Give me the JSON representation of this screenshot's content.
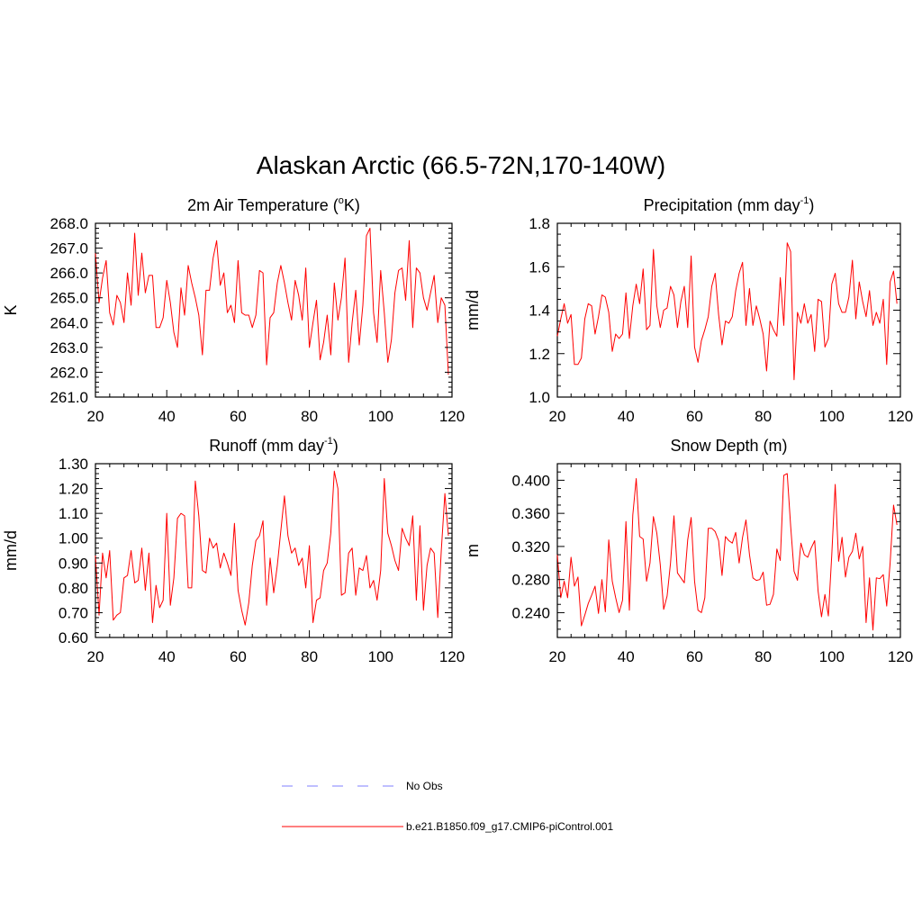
{
  "figure_title": "Alaskan Arctic (66.5-72N,170-140W)",
  "legend": {
    "obs_label": "No Obs",
    "obs_color": "#9999ff",
    "model_label": "b.e21.B1850.f09_g17.CMIP6-piControl.001",
    "model_color": "#ff0000"
  },
  "chart_data": [
    {
      "type": "line",
      "title": "2m Air Temperature (°K)",
      "ylabel": "K",
      "xlim": [
        20,
        120
      ],
      "ylim": [
        261.0,
        268.0
      ],
      "x_ticks": [
        "20",
        "40",
        "60",
        "80",
        "100",
        "120"
      ],
      "y_ticks": [
        "261.0",
        "262.0",
        "263.0",
        "264.0",
        "265.0",
        "266.0",
        "267.0",
        "268.0"
      ],
      "series": [
        {
          "x_start": 20,
          "x_step": 1,
          "values": [
            266.8,
            264.8,
            265.8,
            266.5,
            264.4,
            263.9,
            265.1,
            264.8,
            264.0,
            266.0,
            264.7,
            267.6,
            265.1,
            266.8,
            265.2,
            265.9,
            265.9,
            263.8,
            263.8,
            264.2,
            265.7,
            264.8,
            263.6,
            263.0,
            265.4,
            264.3,
            266.3,
            265.6,
            265.0,
            264.3,
            262.7,
            265.3,
            265.3,
            266.6,
            267.3,
            265.5,
            266.0,
            264.4,
            264.7,
            264.0,
            266.5,
            264.4,
            264.3,
            264.3,
            263.8,
            264.3,
            266.1,
            266.0,
            262.3,
            264.2,
            264.4,
            265.6,
            266.3,
            265.6,
            264.8,
            264.1,
            265.7,
            265.1,
            264.1,
            266.2,
            263.0,
            264.0,
            264.9,
            262.5,
            263.2,
            264.3,
            262.7,
            265.6,
            264.1,
            265.0,
            266.6,
            262.4,
            264.0,
            265.3,
            263.1,
            264.7,
            267.5,
            267.8,
            264.4,
            263.2,
            266.1,
            264.4,
            262.4,
            263.3,
            265.2,
            266.1,
            266.2,
            264.9,
            267.3,
            263.8,
            266.2,
            266.0,
            265.0,
            264.5,
            265.2,
            265.9,
            264.0,
            265.0,
            264.7,
            261.9
          ]
        }
      ]
    },
    {
      "type": "line",
      "title": "Precipitation (mm day⁻¹)",
      "ylabel": "mm/d",
      "xlim": [
        20,
        120
      ],
      "ylim": [
        1.0,
        1.8
      ],
      "x_ticks": [
        "20",
        "40",
        "60",
        "80",
        "100",
        "120"
      ],
      "y_ticks": [
        "1.0",
        "1.2",
        "1.4",
        "1.6",
        "1.8"
      ],
      "series": [
        {
          "x_start": 20,
          "x_step": 1,
          "values": [
            1.28,
            1.36,
            1.43,
            1.34,
            1.38,
            1.15,
            1.15,
            1.18,
            1.36,
            1.43,
            1.42,
            1.29,
            1.37,
            1.47,
            1.46,
            1.39,
            1.21,
            1.29,
            1.27,
            1.29,
            1.48,
            1.27,
            1.42,
            1.52,
            1.43,
            1.59,
            1.31,
            1.33,
            1.68,
            1.42,
            1.32,
            1.4,
            1.41,
            1.51,
            1.47,
            1.32,
            1.44,
            1.51,
            1.32,
            1.65,
            1.23,
            1.16,
            1.26,
            1.31,
            1.37,
            1.51,
            1.57,
            1.38,
            1.24,
            1.35,
            1.34,
            1.37,
            1.49,
            1.57,
            1.62,
            1.33,
            1.5,
            1.33,
            1.42,
            1.36,
            1.29,
            1.12,
            1.35,
            1.31,
            1.28,
            1.55,
            1.33,
            1.71,
            1.67,
            1.08,
            1.39,
            1.34,
            1.43,
            1.34,
            1.38,
            1.21,
            1.45,
            1.44,
            1.23,
            1.27,
            1.52,
            1.57,
            1.43,
            1.39,
            1.39,
            1.46,
            1.63,
            1.36,
            1.53,
            1.44,
            1.37,
            1.49,
            1.33,
            1.39,
            1.34,
            1.45,
            1.15,
            1.53,
            1.58,
            1.43
          ]
        }
      ]
    },
    {
      "type": "line",
      "title": "Runoff (mm day⁻¹)",
      "ylabel": "mm/d",
      "xlim": [
        20,
        120
      ],
      "ylim": [
        0.6,
        1.3
      ],
      "x_ticks": [
        "20",
        "40",
        "60",
        "80",
        "100",
        "120"
      ],
      "y_ticks": [
        "0.60",
        "0.70",
        "0.80",
        "0.90",
        "1.00",
        "1.10",
        "1.20",
        "1.30"
      ],
      "series": [
        {
          "x_start": 20,
          "x_step": 1,
          "values": [
            0.93,
            0.69,
            0.94,
            0.84,
            0.95,
            0.67,
            0.69,
            0.7,
            0.84,
            0.85,
            0.95,
            0.82,
            0.83,
            0.96,
            0.79,
            0.94,
            0.66,
            0.81,
            0.72,
            0.75,
            1.1,
            0.73,
            0.84,
            1.08,
            1.1,
            1.09,
            0.8,
            0.8,
            1.23,
            1.09,
            0.87,
            0.86,
            1.0,
            0.96,
            0.98,
            0.88,
            0.94,
            0.9,
            0.85,
            1.06,
            0.79,
            0.71,
            0.65,
            0.74,
            0.89,
            0.99,
            1.01,
            1.07,
            0.73,
            0.92,
            0.78,
            0.89,
            1.03,
            1.17,
            1.01,
            0.94,
            0.96,
            0.89,
            0.92,
            0.8,
            0.97,
            0.66,
            0.75,
            0.76,
            0.87,
            0.9,
            1.02,
            1.27,
            1.2,
            0.77,
            0.78,
            0.94,
            0.96,
            0.77,
            0.88,
            0.87,
            0.93,
            0.8,
            0.83,
            0.75,
            0.87,
            1.24,
            1.02,
            0.97,
            0.91,
            0.87,
            1.04,
            1.0,
            0.97,
            1.09,
            0.75,
            1.05,
            0.71,
            0.89,
            0.96,
            0.94,
            0.68,
            0.95,
            1.18,
            1.01
          ]
        }
      ]
    },
    {
      "type": "line",
      "title": "Snow Depth (m)",
      "ylabel": "m",
      "xlim": [
        20,
        120
      ],
      "ylim": [
        0.21,
        0.42
      ],
      "x_ticks": [
        "20",
        "40",
        "60",
        "80",
        "100",
        "120"
      ],
      "y_ticks": [
        "0.240",
        "0.280",
        "0.320",
        "0.360",
        "0.400"
      ],
      "series": [
        {
          "x_start": 20,
          "x_step": 1,
          "values": [
            0.31,
            0.258,
            0.278,
            0.258,
            0.307,
            0.272,
            0.283,
            0.224,
            0.237,
            0.251,
            0.261,
            0.272,
            0.239,
            0.28,
            0.241,
            0.328,
            0.278,
            0.258,
            0.24,
            0.255,
            0.35,
            0.243,
            0.358,
            0.402,
            0.332,
            0.329,
            0.278,
            0.3,
            0.356,
            0.336,
            0.298,
            0.244,
            0.26,
            0.3,
            0.357,
            0.288,
            0.282,
            0.276,
            0.328,
            0.355,
            0.278,
            0.243,
            0.24,
            0.258,
            0.342,
            0.342,
            0.338,
            0.327,
            0.285,
            0.332,
            0.327,
            0.324,
            0.337,
            0.3,
            0.331,
            0.352,
            0.31,
            0.282,
            0.279,
            0.28,
            0.289,
            0.249,
            0.25,
            0.262,
            0.317,
            0.303,
            0.406,
            0.408,
            0.345,
            0.29,
            0.279,
            0.324,
            0.31,
            0.307,
            0.318,
            0.327,
            0.266,
            0.235,
            0.262,
            0.236,
            0.31,
            0.395,
            0.302,
            0.331,
            0.283,
            0.307,
            0.314,
            0.336,
            0.305,
            0.32,
            0.228,
            0.282,
            0.219,
            0.282,
            0.281,
            0.286,
            0.248,
            0.3,
            0.37,
            0.346
          ]
        }
      ]
    }
  ]
}
